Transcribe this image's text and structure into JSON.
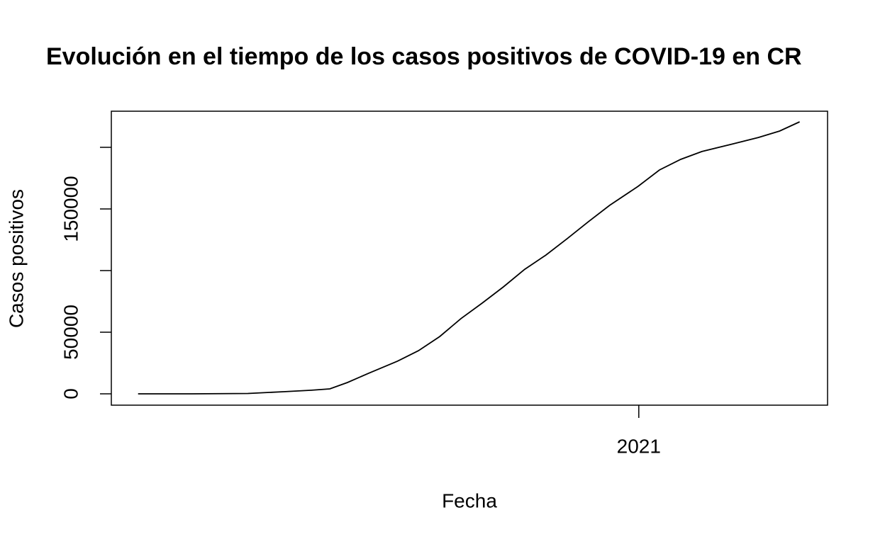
{
  "chart_data": {
    "type": "line",
    "title": "Evolución en el tiempo de los casos positivos de COVID-19 en CR",
    "x_label": "Fecha",
    "y_label": "Casos positivos",
    "x": [
      2020.175,
      2020.263,
      2020.356,
      2020.415,
      2020.461,
      2020.491,
      2020.52,
      2020.555,
      2020.602,
      2020.637,
      2020.672,
      2020.707,
      2020.742,
      2020.777,
      2020.812,
      2020.847,
      2020.882,
      2020.917,
      2020.952,
      2020.999,
      2021.034,
      2021.069,
      2021.104,
      2021.151,
      2021.197,
      2021.232,
      2021.265
    ],
    "values": [
      0,
      0,
      300,
      1700,
      2900,
      4000,
      9200,
      16700,
      26400,
      35000,
      46500,
      61000,
      73600,
      86800,
      101000,
      112600,
      125900,
      139700,
      152900,
      168400,
      181600,
      190200,
      196600,
      202300,
      208000,
      213200,
      220700
    ],
    "color": "#000000",
    "xlim": [
      2020.131,
      2021.311
    ],
    "xticks": [
      2021
    ],
    "ylim": [
      -9200,
      229300
    ],
    "yticks": [
      0,
      50000,
      {
        "value": 100000,
        "label": null
      },
      150000,
      {
        "value": 200000,
        "label": null
      }
    ]
  }
}
